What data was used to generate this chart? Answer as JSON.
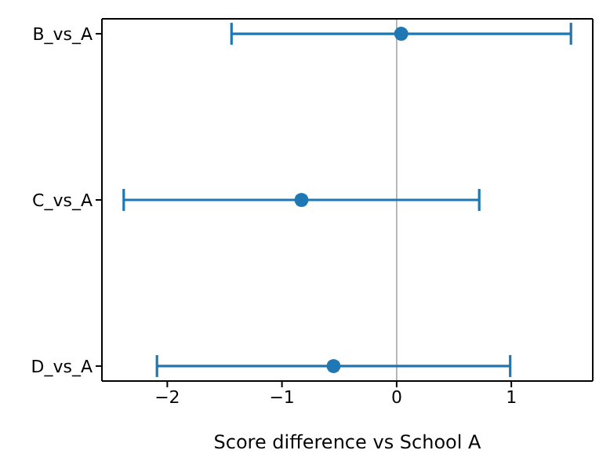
{
  "chart_data": {
    "type": "scatter",
    "orientation": "horizontal",
    "categories": [
      "B_vs_A",
      "C_vs_A",
      "D_vs_A"
    ],
    "values": [
      0.04,
      -0.83,
      -0.55
    ],
    "errors": [
      1.48,
      1.55,
      1.54
    ],
    "color": "#1f77b4",
    "marker": "circle",
    "xlabel": "Score difference vs School A",
    "xlim": [
      -2.57,
      1.71
    ],
    "xticks": [
      {
        "value": -2,
        "label": "−2"
      },
      {
        "value": -1,
        "label": "−1"
      },
      0,
      1
    ],
    "ref_lines": [
      {
        "axis": "x",
        "value": 0,
        "color": "#a6a6a6"
      }
    ],
    "grid": false,
    "legend": false
  }
}
